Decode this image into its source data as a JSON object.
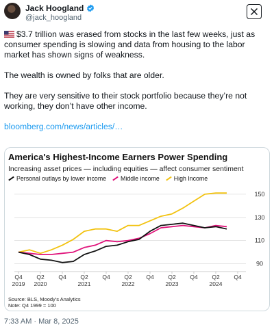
{
  "tweet": {
    "author_name": "Jack Hoogland",
    "author_handle": "@jack_hoogland",
    "paragraph_1": "$3.7 trillion was erased from stocks in the last few weeks, just as consumer spending is slowing and data from housing to the labor market has shown signs of weakness.",
    "paragraph_2": "The wealth is owned by folks that are older.",
    "paragraph_3": "They are very sensitive to their stock portfolio because they’re not working, they don’t have other income.",
    "link_text": "bloomberg.com/news/articles/…",
    "timestamp": "7:33 AM · Mar 8, 2025",
    "icons": {
      "verified": "verified-badge-icon",
      "brand": "x-logo-icon",
      "flag": "us-flag-icon"
    },
    "colors": {
      "link": "#1d9bf0",
      "verified": "#1d9bf0"
    }
  },
  "chart_data": {
    "type": "line",
    "title": "America's Highest-Income Earners Power Spending",
    "subtitle": "Increasing asset prices — including equities — affect consumer sentiment",
    "source": "Source: BLS, Moody's Analytics",
    "note": "Note: Q4 1999 = 100",
    "x": [
      "Q4 2019",
      "Q1 2020",
      "Q2 2020",
      "Q3 2020",
      "Q4 2020",
      "Q1 2021",
      "Q2 2021",
      "Q3 2021",
      "Q4 2021",
      "Q1 2022",
      "Q2 2022",
      "Q3 2022",
      "Q4 2022",
      "Q1 2023",
      "Q2 2023",
      "Q3 2023",
      "Q4 2023",
      "Q1 2024",
      "Q2 2024",
      "Q3 2024"
    ],
    "x_tick_labels": [
      {
        "at": "Q4 2019",
        "top": "Q4",
        "bottom": "2019"
      },
      {
        "at": "Q2 2020",
        "top": "Q2",
        "bottom": "2020"
      },
      {
        "at": "Q4 2020",
        "top": "Q4",
        "bottom": ""
      },
      {
        "at": "Q2 2021",
        "top": "Q2",
        "bottom": "2021"
      },
      {
        "at": "Q4 2021",
        "top": "Q4",
        "bottom": ""
      },
      {
        "at": "Q2 2022",
        "top": "Q2",
        "bottom": "2022"
      },
      {
        "at": "Q4 2022",
        "top": "Q4",
        "bottom": ""
      },
      {
        "at": "Q2 2023",
        "top": "Q2",
        "bottom": "2023"
      },
      {
        "at": "Q4 2023",
        "top": "Q4",
        "bottom": ""
      },
      {
        "at": "Q2 2024",
        "top": "Q2",
        "bottom": "2024"
      },
      {
        "at": "Q4 2024",
        "top": "Q4",
        "bottom": ""
      }
    ],
    "y_ticks": [
      90,
      110,
      130,
      150
    ],
    "ylim": [
      85,
      157
    ],
    "x_extent": [
      "Q4 2019",
      "Q4 2024"
    ],
    "grid": true,
    "legend_position": "top-left",
    "series": [
      {
        "name": "Personal outlays by lower income",
        "color": "#111111",
        "values": [
          100,
          98,
          94,
          93,
          91,
          92,
          98,
          101,
          105,
          106,
          109,
          111,
          118,
          123,
          124,
          125,
          123,
          121,
          122,
          120
        ]
      },
      {
        "name": "Middle income",
        "color": "#e0127a",
        "values": [
          100,
          99,
          98,
          98,
          99,
          100,
          104,
          106,
          110,
          109,
          110,
          112,
          116,
          121,
          122,
          123,
          122,
          121,
          123,
          122
        ]
      },
      {
        "name": "High Income",
        "color": "#f2c20f",
        "values": [
          100,
          102,
          99,
          102,
          106,
          111,
          118,
          120,
          120,
          118,
          123,
          123,
          127,
          131,
          133,
          138,
          144,
          150,
          151,
          151
        ]
      }
    ]
  }
}
